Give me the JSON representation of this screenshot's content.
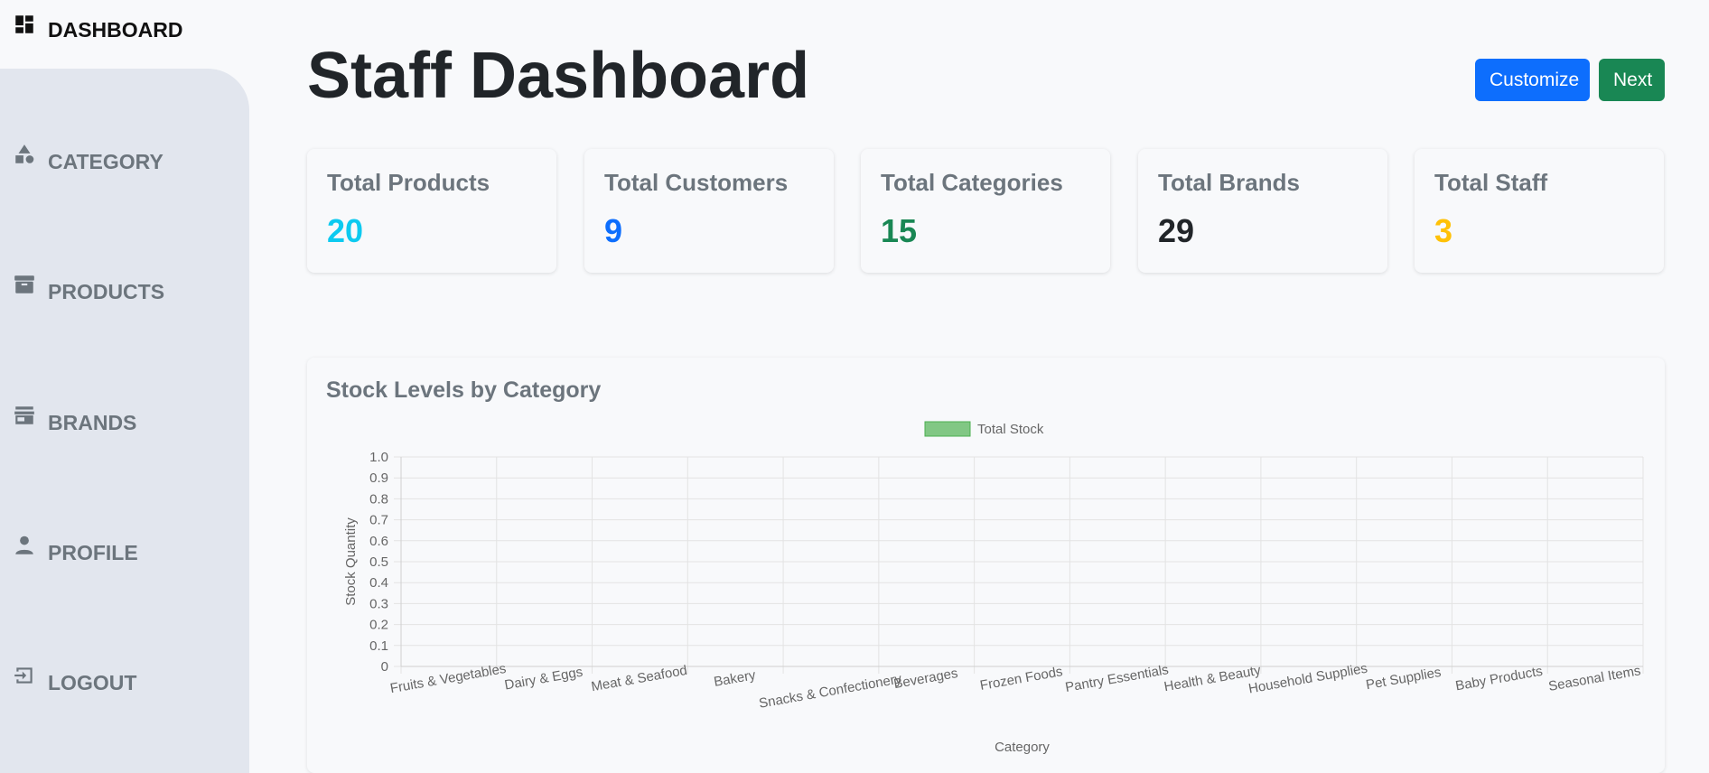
{
  "sidebar": {
    "top": {
      "label": "DASHBOARD",
      "icon": "dashboard-icon"
    },
    "items": [
      {
        "label": "CATEGORY",
        "icon": "shapes-icon"
      },
      {
        "label": "PRODUCTS",
        "icon": "archive-box-icon"
      },
      {
        "label": "BRANDS",
        "icon": "storefront-icon"
      },
      {
        "label": "PROFILE",
        "icon": "person-icon"
      },
      {
        "label": "LOGOUT",
        "icon": "logout-icon"
      }
    ]
  },
  "header": {
    "title": "Staff Dashboard",
    "customize_label": "Customize",
    "next_label": "Next"
  },
  "colors": {
    "primary": "#0d6efd",
    "success": "#198754",
    "info": "#0dcaf0",
    "warning": "#ffc107",
    "dark": "#212529",
    "muted": "#6c757d",
    "bar_fill": "#81c784",
    "bar_border": "#4caf50"
  },
  "stats": [
    {
      "title": "Total Products",
      "value": "20",
      "color": "#0dcaf0"
    },
    {
      "title": "Total Customers",
      "value": "9",
      "color": "#0d6efd"
    },
    {
      "title": "Total Categories",
      "value": "15",
      "color": "#198754"
    },
    {
      "title": "Total Brands",
      "value": "29",
      "color": "#212529"
    },
    {
      "title": "Total Staff",
      "value": "3",
      "color": "#ffc107"
    }
  ],
  "chart_card": {
    "title": "Stock Levels by Category"
  },
  "chart_data": {
    "type": "bar",
    "title": "",
    "xlabel": "Category",
    "ylabel": "Stock Quantity",
    "ylim": [
      0,
      1
    ],
    "yticks": [
      "0",
      "0.1",
      "0.2",
      "0.3",
      "0.4",
      "0.5",
      "0.6",
      "0.7",
      "0.8",
      "0.9",
      "1.0"
    ],
    "grid": true,
    "legend": "top-center",
    "categories": [
      "Fruits & Vegetables",
      "Dairy & Eggs",
      "Meat & Seafood",
      "Bakery",
      "Snacks & Confectionery",
      "Beverages",
      "Frozen Foods",
      "Pantry Essentials",
      "Health & Beauty",
      "Household Supplies",
      "Pet Supplies",
      "Baby Products",
      "Seasonal Items"
    ],
    "series": [
      {
        "name": "Total Stock",
        "values": [
          0,
          0,
          0,
          0,
          0,
          0,
          0,
          0,
          0,
          0,
          0,
          0,
          0
        ]
      }
    ]
  }
}
